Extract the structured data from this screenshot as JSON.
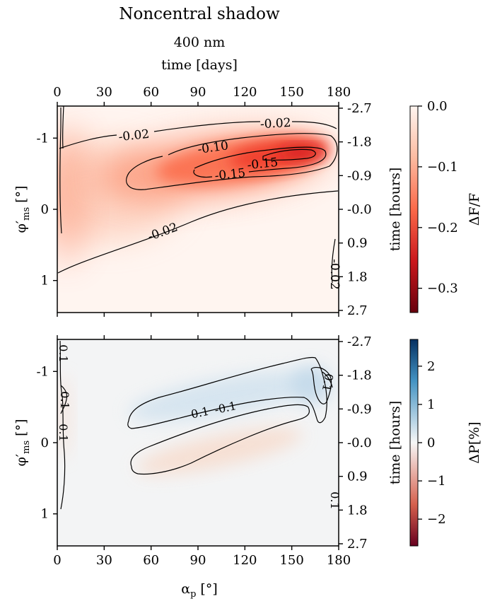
{
  "figure": {
    "title": "Noncentral shadow",
    "subtitle": "400 nm",
    "top_axis_label": "time [days]",
    "bottom_axis_label": "αp [°]",
    "left_axis_label": "φ′ms [°]",
    "right_axis_label": "time [hours]"
  },
  "chart_data": [
    {
      "type": "heatmap",
      "panel": "top",
      "title": "Noncentral shadow",
      "subtitle": "400 nm",
      "xlabel": "αp [°]",
      "ylabel": "φ′ms [°]",
      "x_top_label": "time [days]",
      "y_right_label": "time [hours]",
      "xlim": [
        0,
        180
      ],
      "ylim": [
        -1.45,
        1.45
      ],
      "y_inverted": true,
      "x_ticks": [
        0,
        30,
        60,
        90,
        120,
        150,
        180
      ],
      "x_top_ticks": [
        0,
        30,
        60,
        90,
        120,
        150,
        180
      ],
      "y_ticks": [
        -1,
        0,
        1
      ],
      "y_tick_labels": [
        "-1",
        "0",
        "1"
      ],
      "y_right_ticks": [
        "-2.7",
        "-1.8",
        "-0.9",
        "-0.0",
        "0.9",
        "1.8",
        "2.7"
      ],
      "colorbar": {
        "label": "ΔF/F",
        "range": [
          -0.34,
          0.0
        ],
        "ticks": [
          0.0,
          -0.1,
          -0.2,
          -0.3
        ],
        "tick_labels": [
          "0.0",
          "−0.1",
          "−0.2",
          "−0.3"
        ],
        "colormap": "Reds_r",
        "colors": [
          "#67000d",
          "#cb181d",
          "#fb6a4a",
          "#fcbba1",
          "#fff5f0"
        ]
      },
      "contour_labels": [
        "-0.02",
        "-0.02",
        "-0.10",
        "-0.15",
        "-0.15",
        "-0.02",
        "-0.02"
      ],
      "contour_levels": [
        -0.02,
        -0.1,
        -0.15
      ],
      "peak": {
        "x": 150,
        "y": -0.8,
        "value": -0.19
      }
    },
    {
      "type": "heatmap",
      "panel": "bottom",
      "xlabel": "αp [°]",
      "ylabel": "φ′ms [°]",
      "y_right_label": "time [hours]",
      "xlim": [
        0,
        180
      ],
      "ylim": [
        -1.45,
        1.45
      ],
      "y_inverted": true,
      "x_ticks": [
        0,
        30,
        60,
        90,
        120,
        150,
        180
      ],
      "y_ticks": [
        -1,
        0,
        1
      ],
      "y_tick_labels": [
        "-1",
        "0",
        "1"
      ],
      "y_right_ticks": [
        "-2.7",
        "-1.8",
        "-0.9",
        "-0.0",
        "0.9",
        "1.8",
        "2.7"
      ],
      "colorbar": {
        "label": "ΔP[%]",
        "range": [
          -2.7,
          2.7
        ],
        "ticks": [
          2,
          1,
          0,
          -1,
          -2
        ],
        "tick_labels": [
          "2",
          "1",
          "0",
          "−1",
          "−2"
        ],
        "colormap": "RdBu",
        "colors": [
          "#67001f",
          "#d6604d",
          "#f7f7f7",
          "#4393c3",
          "#053061"
        ]
      },
      "contour_labels": [
        "0.1",
        "-0.1",
        "0.1",
        "0.1",
        "0.1",
        "0.1",
        "0.1"
      ],
      "contour_levels": [
        0.1,
        -0.1
      ]
    }
  ]
}
